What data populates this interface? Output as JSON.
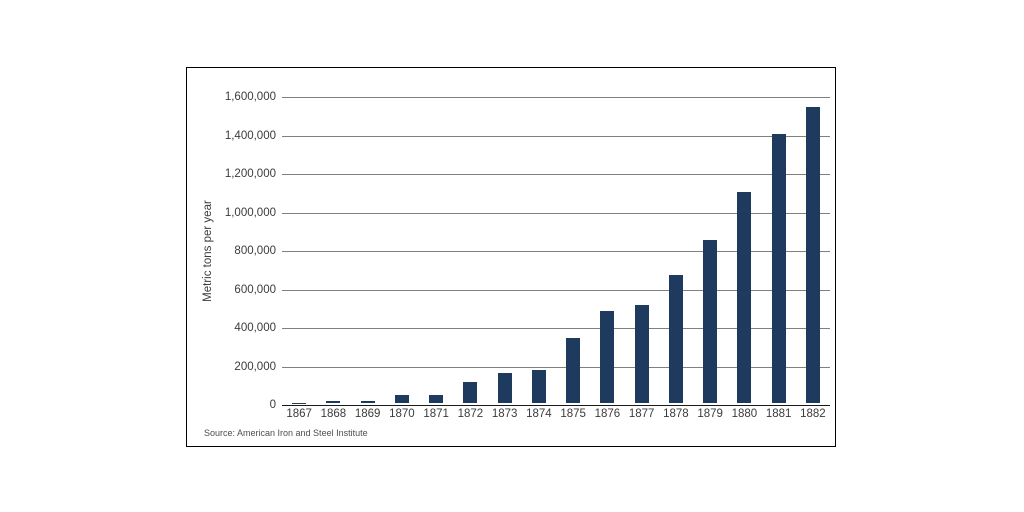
{
  "chart_data": {
    "type": "bar",
    "title": "",
    "xlabel": "",
    "ylabel": "Metric tons per year",
    "categories": [
      "1867",
      "1868",
      "1869",
      "1870",
      "1871",
      "1872",
      "1873",
      "1874",
      "1875",
      "1876",
      "1877",
      "1878",
      "1879",
      "1880",
      "1881",
      "1882"
    ],
    "values": [
      2000,
      10000,
      13000,
      40000,
      41000,
      110000,
      155000,
      173000,
      340000,
      480000,
      510000,
      663000,
      845000,
      1095000,
      1400000,
      1540000
    ],
    "ylim": [
      0,
      1600000
    ],
    "ytick_step": 200000,
    "ytick_labels": [
      "0",
      "200,000",
      "400,000",
      "600,000",
      "800,000",
      "1,000,000",
      "1,200,000",
      "1,400,000",
      "1,600,000"
    ],
    "grid": true,
    "legend": "none",
    "source": "Source: American Iron and Steel Institute"
  },
  "colors": {
    "bar": "#1E3A5F",
    "gridline": "#808080",
    "axis": "#1A1A1A",
    "text": "#3B3B3B",
    "muted": "#4D4D4D",
    "border": "#000000",
    "background": "#FFFFFF"
  }
}
